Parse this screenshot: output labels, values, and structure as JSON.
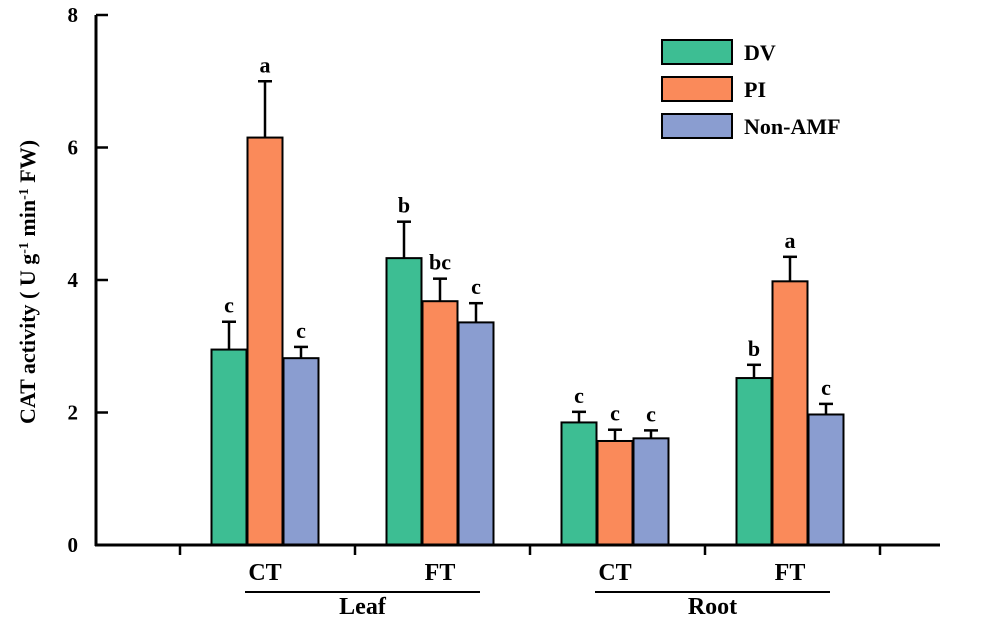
{
  "chart_data": {
    "type": "bar",
    "title": "",
    "ylabel": "CAT activity ( U g⁻¹ min⁻¹ FW)",
    "ylabel_parts": [
      "CAT activity ( U g",
      "-1",
      " min",
      "-1",
      " FW)"
    ],
    "ylim": [
      0,
      8
    ],
    "yticks": [
      "0",
      "2",
      "4",
      "6",
      "8"
    ],
    "categories": [
      "CT",
      "FT",
      "CT",
      "FT"
    ],
    "groups": [
      {
        "label": "Leaf",
        "categories": [
          0,
          1
        ]
      },
      {
        "label": "Root",
        "categories": [
          2,
          3
        ]
      }
    ],
    "series": [
      {
        "name": "DV",
        "color": "#3DBE93",
        "values": [
          2.95,
          4.33,
          1.85,
          2.52
        ],
        "errors": [
          0.42,
          0.55,
          0.16,
          0.2
        ],
        "letters": [
          "c",
          "b",
          "c",
          "b"
        ]
      },
      {
        "name": "PI",
        "color": "#FA8A5A",
        "values": [
          6.15,
          3.68,
          1.57,
          3.98
        ],
        "errors": [
          0.85,
          0.34,
          0.17,
          0.37
        ],
        "letters": [
          "a",
          "bc",
          "c",
          "a"
        ]
      },
      {
        "name": "Non-AMF",
        "color": "#8A9DD0",
        "values": [
          2.82,
          3.36,
          1.61,
          1.97
        ],
        "errors": [
          0.17,
          0.29,
          0.12,
          0.16
        ],
        "letters": [
          "c",
          "c",
          "c",
          "c"
        ]
      }
    ],
    "legend_position": "top-right",
    "grid": false
  }
}
